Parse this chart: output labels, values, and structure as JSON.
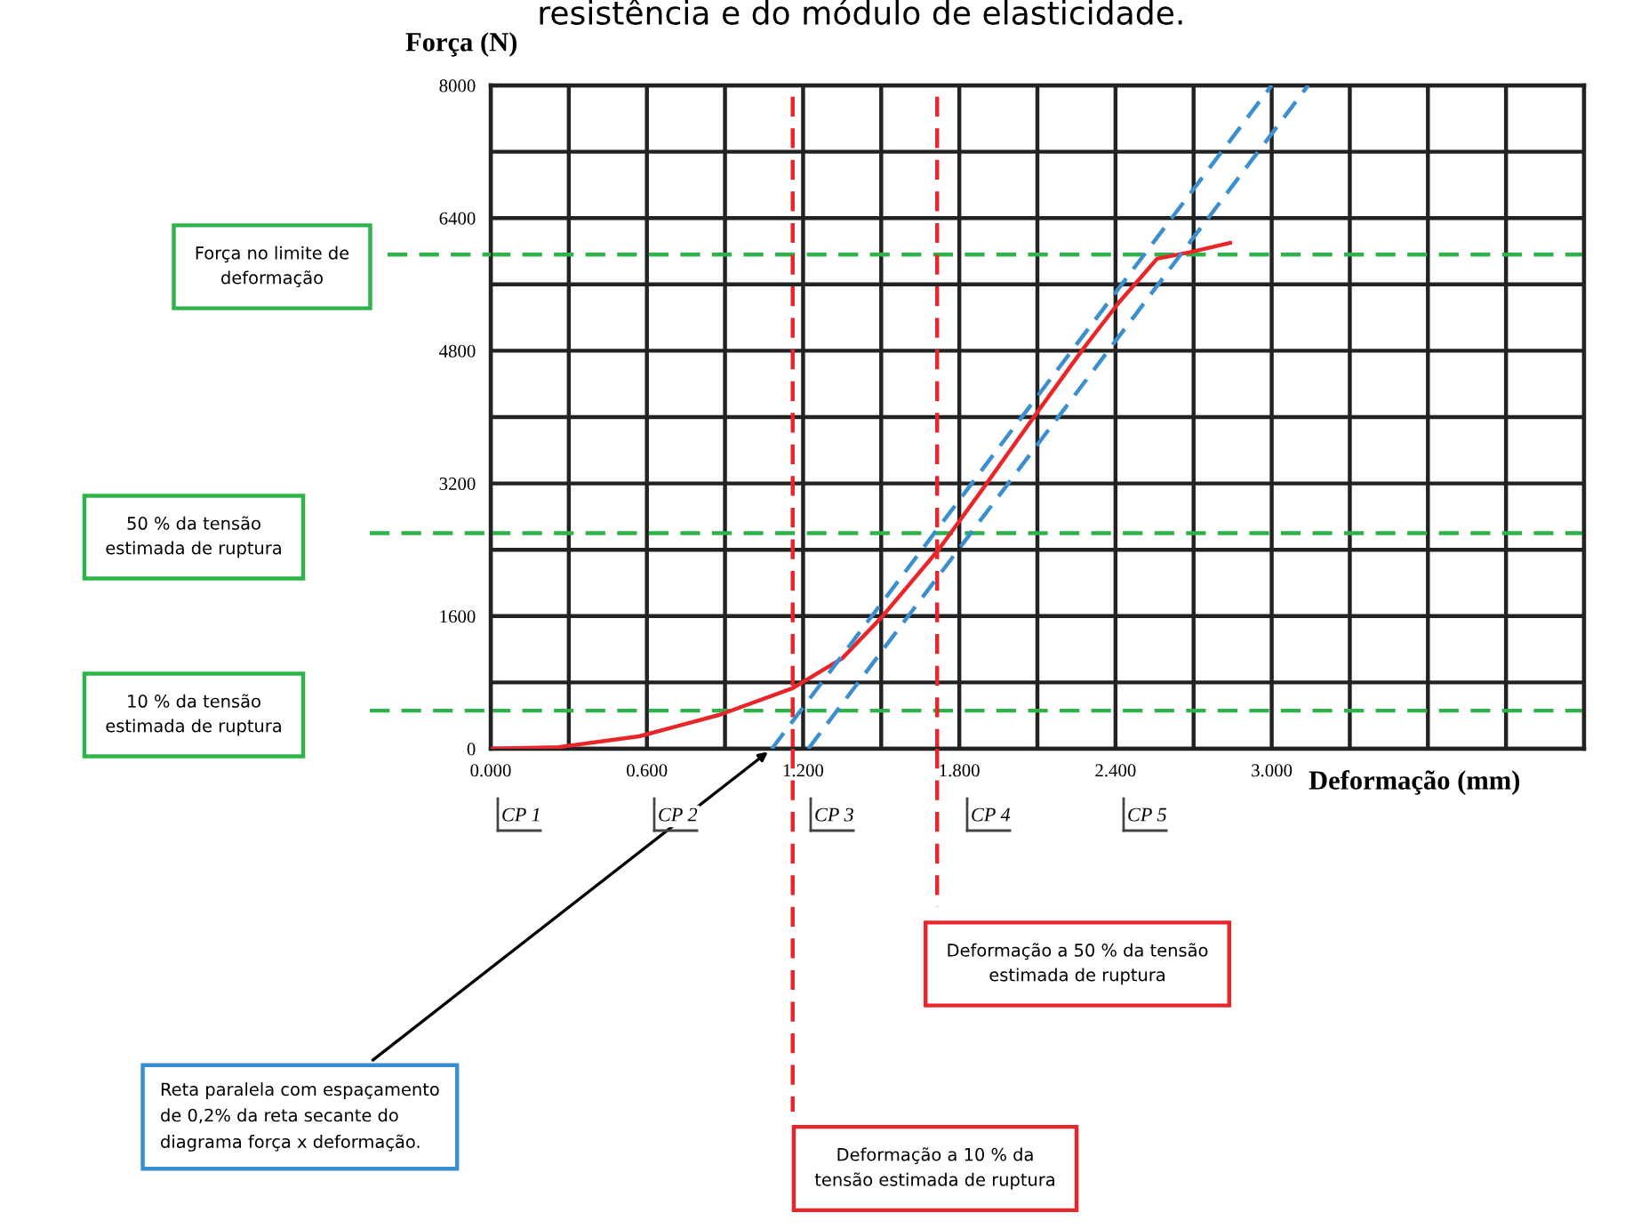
{
  "chart_data": {
    "type": "line",
    "title": "resistência e do módulo de elasticidade.",
    "xlabel": "Deformação (mm)",
    "ylabel": "Força (N)",
    "series": [
      {
        "color": "#e8262a",
        "line_style": "solid",
        "x": [
          0,
          0.26,
          0.57,
          0.88,
          1.16,
          1.35,
          1.5,
          1.72,
          1.88,
          2.1,
          2.28,
          2.41,
          2.56,
          2.69,
          2.84
        ],
        "values": [
          0,
          20,
          150,
          410,
          730,
          1090,
          1580,
          2400,
          3090,
          4060,
          4840,
          5370,
          5910,
          5990,
          6100
        ]
      },
      {
        "color": "#3a8fd0",
        "line_style": "dashed",
        "x": [
          1.08,
          3.0
        ],
        "values": [
          0,
          8000
        ]
      },
      {
        "color": "#3a8fd0",
        "line_style": "dashed",
        "x": [
          1.22,
          3.14
        ],
        "values": [
          0,
          8000
        ]
      }
    ],
    "xlim": [
      0,
      4.2
    ],
    "ylim": [
      0,
      8000
    ],
    "xticks": [
      {
        "value": 0,
        "label": "0.000"
      },
      {
        "value": 0.3,
        "label": null
      },
      {
        "value": 0.6,
        "label": "0.600"
      },
      {
        "value": 0.9,
        "label": null
      },
      {
        "value": 1.2,
        "label": "1.200"
      },
      {
        "value": 1.5,
        "label": null
      },
      {
        "value": 1.8,
        "label": "1.800"
      },
      {
        "value": 2.1,
        "label": null
      },
      {
        "value": 2.4,
        "label": "2.400"
      },
      {
        "value": 2.7,
        "label": null
      },
      {
        "value": 3.0,
        "label": "3.000"
      },
      {
        "value": 3.3,
        "label": null
      },
      {
        "value": 3.6,
        "label": null
      },
      {
        "value": 3.9,
        "label": null
      },
      {
        "value": 4.2,
        "label": null
      }
    ],
    "yticks": [
      0,
      {
        "value": 800,
        "label": null
      },
      1600,
      {
        "value": 2400,
        "label": null
      },
      3200,
      {
        "value": 4000,
        "label": null
      },
      4800,
      {
        "value": 5600,
        "label": null
      },
      6400,
      {
        "value": 7200,
        "label": null
      },
      8000
    ],
    "grid": true,
    "legend": false,
    "marker": "none",
    "ref_lines": [
      {
        "axis": "y",
        "value": 460,
        "color": "#2eb34a",
        "line_style": "dashed"
      },
      {
        "axis": "y",
        "value": 2600,
        "color": "#2eb34a",
        "line_style": "dashed"
      },
      {
        "axis": "y",
        "value": 5960,
        "color": "#2eb34a",
        "line_style": "dashed"
      },
      {
        "axis": "x",
        "value": 1.16,
        "color": "#e8262a",
        "line_style": "dashed"
      },
      {
        "axis": "x",
        "value": 1.715,
        "color": "#e8262a",
        "line_style": "dashed"
      }
    ],
    "annotations": [
      "CP 1",
      "CP 2",
      "CP 3",
      "CP 4",
      "CP 5",
      "Reta paralela com espaçamento\nde 0,2% da reta secante do\ndiagrama força x deformação.",
      "10 % da tensão\nestimada de ruptura",
      "50 % da tensão\nestimada de ruptura",
      "Força no limite de\ndeformação",
      "Deformação a 10 % da\ntensão estimada de ruptura",
      "Deformação a 50 % da tensão\nestimada de ruptura"
    ]
  }
}
